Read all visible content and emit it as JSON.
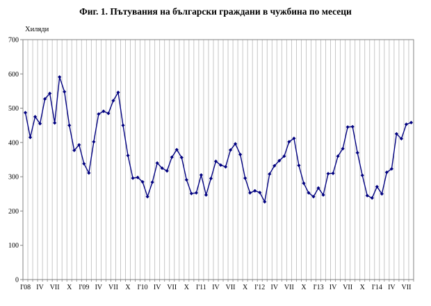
{
  "chart_data": {
    "type": "line",
    "title": "Фиг. 1. Пътувания на български граждани в чужбина по месеци",
    "ylabel": "Хиляди",
    "xlabel": "",
    "ylim": [
      0,
      700
    ],
    "yticks": [
      0,
      100,
      200,
      300,
      400,
      500,
      600,
      700
    ],
    "grid": "vertical",
    "legend": "none",
    "x_tick_labels": [
      "I'08",
      "IV",
      "VII",
      "X",
      "I'09",
      "IV",
      "VII",
      "X",
      "I'10",
      "IV",
      "VII",
      "X",
      "I'11",
      "IV",
      "VII",
      "X",
      "I'12",
      "IV",
      "VII",
      "X",
      "I'13",
      "IV",
      "VII",
      "X",
      "I'14",
      "IV",
      "VII"
    ],
    "series": [
      {
        "color": "#000080",
        "marker": "diamond",
        "values": [
          487,
          415,
          475,
          455,
          527,
          543,
          457,
          591,
          548,
          450,
          377,
          393,
          338,
          311,
          402,
          483,
          491,
          485,
          522,
          546,
          450,
          362,
          296,
          298,
          285,
          242,
          284,
          340,
          325,
          317,
          357,
          379,
          356,
          291,
          251,
          253,
          305,
          247,
          295,
          345,
          334,
          329,
          378,
          396,
          365,
          296,
          253,
          259,
          254,
          227,
          308,
          332,
          347,
          360,
          402,
          412,
          333,
          281,
          253,
          242,
          267,
          247,
          309,
          310,
          360,
          382,
          445,
          446,
          370,
          304,
          245,
          238,
          271,
          250,
          313,
          323,
          425,
          411,
          453,
          458
        ]
      }
    ]
  }
}
